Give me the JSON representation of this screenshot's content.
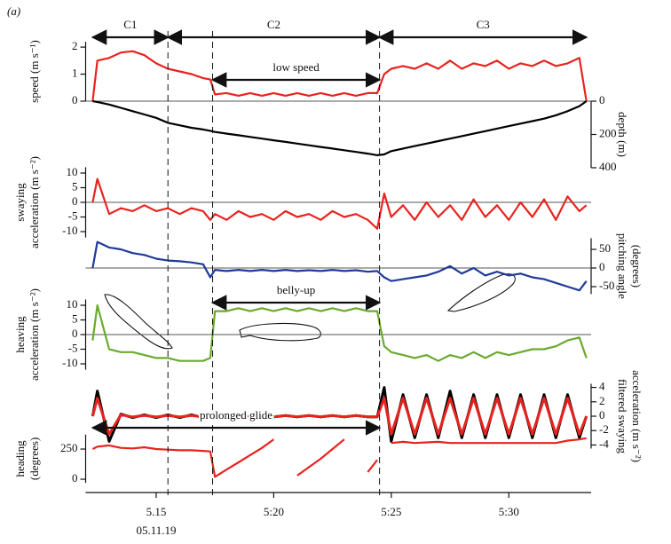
{
  "panel_label": "(a)",
  "x_axis": {
    "x": [
      12.3,
      12.5,
      13,
      13.5,
      14,
      14.5,
      15,
      15.5,
      16,
      16.5,
      17,
      17.3,
      17.5,
      18,
      18.5,
      19,
      19.5,
      20,
      20.5,
      21,
      21.5,
      22,
      22.5,
      23,
      23.5,
      24,
      24.4,
      24.7,
      25,
      25.5,
      26,
      26.5,
      27,
      27.5,
      28,
      28.5,
      29,
      29.5,
      30,
      30.5,
      31,
      31.5,
      32,
      32.5,
      33,
      33.3
    ],
    "xlim": [
      12,
      33.5
    ],
    "xticks": [
      {
        "value": 15,
        "label": "5.15"
      },
      {
        "value": 20,
        "label": "5:20"
      },
      {
        "value": 25,
        "label": "5:25"
      },
      {
        "value": 30,
        "label": "5:30"
      }
    ],
    "xsublabel": "05.11.19"
  },
  "dividers": [
    15.5,
    17.4,
    24.5
  ],
  "annotations": [
    {
      "text": "C1",
      "x": [
        12.3,
        15.5
      ]
    },
    {
      "text": "C2",
      "x": [
        15.5,
        24.5
      ]
    },
    {
      "text": "C3",
      "x": [
        24.5,
        33.3
      ]
    },
    {
      "text": "low speed",
      "x": [
        17.4,
        24.5
      ]
    },
    {
      "text": "belly-up",
      "x": [
        17.4,
        24.5
      ]
    },
    {
      "text": "prolonged glide",
      "x": [
        12.3,
        24.5
      ]
    }
  ],
  "chart_data": [
    {
      "type": "line",
      "side": "left",
      "ylabel": [
        "speed (m s⁻¹)"
      ],
      "ylim": [
        0,
        2.2
      ],
      "yticks": [
        0,
        1,
        2
      ],
      "ref_line": 0,
      "series": [
        {
          "color": "#e8231f",
          "values": [
            0,
            1.5,
            1.6,
            1.8,
            1.85,
            1.7,
            1.4,
            1.2,
            1.1,
            1.0,
            0.85,
            0.8,
            0.25,
            0.3,
            0.2,
            0.3,
            0.2,
            0.3,
            0.2,
            0.3,
            0.2,
            0.3,
            0.2,
            0.3,
            0.2,
            0.3,
            0.3,
            1.0,
            1.2,
            1.3,
            1.2,
            1.4,
            1.2,
            1.5,
            1.2,
            1.4,
            1.3,
            1.5,
            1.2,
            1.4,
            1.3,
            1.5,
            1.3,
            1.4,
            1.6,
            0
          ]
        }
      ]
    },
    {
      "type": "line",
      "side": "right",
      "inverted": true,
      "ylabel": [
        "depth (m)"
      ],
      "ylim": [
        0,
        400
      ],
      "yticks": [
        0,
        200,
        400
      ],
      "series": [
        {
          "color": "#000000",
          "values": [
            0,
            5,
            20,
            40,
            60,
            80,
            100,
            130,
            145,
            160,
            170,
            178,
            185,
            195,
            205,
            215,
            225,
            235,
            245,
            255,
            265,
            275,
            285,
            295,
            305,
            315,
            325,
            320,
            300,
            285,
            270,
            255,
            240,
            225,
            210,
            195,
            180,
            165,
            150,
            135,
            120,
            105,
            85,
            60,
            30,
            0
          ]
        }
      ]
    },
    {
      "type": "line",
      "side": "left",
      "ylabel": [
        "swaying",
        "acceleration (m s⁻²)"
      ],
      "ylim": [
        -12,
        12
      ],
      "yticks": [
        10,
        5,
        0,
        -5,
        -10
      ],
      "ref_line": 0,
      "series": [
        {
          "color": "#e8231f",
          "values": [
            0,
            8,
            -4,
            -2,
            -3,
            -1,
            -3,
            -2,
            -4,
            -2,
            -3,
            -6,
            -4,
            -6,
            -3,
            -5,
            -4,
            -6,
            -3,
            -5,
            -4,
            -6,
            -3,
            -5,
            -4,
            -6,
            -9,
            3,
            -5,
            -1,
            -6,
            0,
            -5,
            -1,
            -6,
            1,
            -5,
            -1,
            -6,
            0,
            -5,
            1,
            -6,
            2,
            -3,
            -1
          ]
        }
      ]
    },
    {
      "type": "line",
      "side": "right",
      "ylabel": [
        "pitching angle",
        "(degrees)"
      ],
      "ylim": [
        -70,
        80
      ],
      "yticks": [
        50,
        0,
        -50
      ],
      "ref_line": 0,
      "series": [
        {
          "color": "#1f3a9a",
          "values": [
            0,
            70,
            55,
            50,
            40,
            35,
            25,
            20,
            18,
            15,
            10,
            -25,
            -5,
            -8,
            -5,
            -8,
            -5,
            -8,
            -5,
            -8,
            -6,
            -8,
            -5,
            -8,
            -6,
            -10,
            -8,
            -25,
            -35,
            -30,
            -25,
            -20,
            -10,
            5,
            -15,
            0,
            -20,
            -10,
            -20,
            -15,
            -25,
            -30,
            -40,
            -50,
            -60,
            -35
          ]
        }
      ]
    },
    {
      "type": "line",
      "side": "left",
      "ylabel": [
        "heaving",
        "acceleration (m s⁻²)"
      ],
      "ylim": [
        -12,
        12
      ],
      "yticks": [
        10,
        5,
        0,
        -5,
        -10
      ],
      "ref_line": 0,
      "series": [
        {
          "color": "#6aaa2e",
          "values": [
            -2,
            10,
            -5,
            -6,
            -6,
            -7,
            -8,
            -8,
            -9,
            -9,
            -9,
            -8,
            8,
            8,
            9,
            8,
            9,
            8,
            9,
            8,
            9,
            8,
            9,
            8,
            9,
            8,
            8,
            -4,
            -6,
            -7,
            -8,
            -7,
            -9,
            -7,
            -8,
            -6,
            -8,
            -6,
            -7,
            -6,
            -5,
            -5,
            -4,
            -2,
            -1,
            -8
          ]
        }
      ]
    },
    {
      "type": "line",
      "side": "right",
      "ylabel": [
        "filtered swaying",
        "acceleration (m s⁻²)"
      ],
      "ylim": [
        -4.5,
        4.5
      ],
      "yticks": [
        4,
        2,
        0,
        -2,
        -4
      ],
      "series": [
        {
          "color": "#000000",
          "values": [
            0,
            3.5,
            -3.5,
            0.3,
            -0.2,
            0.2,
            -0.2,
            0.2,
            -0.2,
            0.2,
            -0.2,
            0.2,
            0.1,
            -0.1,
            0.1,
            -0.1,
            0.1,
            -0.1,
            0.1,
            -0.1,
            0.1,
            -0.1,
            0.1,
            -0.1,
            0.1,
            -0.1,
            -0.1,
            4,
            -3.5,
            3,
            -3,
            3,
            -3,
            3.5,
            -3,
            3,
            -3,
            3,
            -3,
            3,
            -3,
            3,
            -3,
            3,
            -3,
            0
          ]
        },
        {
          "color": "#e8231f",
          "values": [
            0,
            2.5,
            -2.5,
            0.2,
            -0.1,
            0.1,
            -0.1,
            0.1,
            -0.1,
            0.1,
            -0.1,
            0.1,
            0.1,
            -0.1,
            0.1,
            -0.1,
            0.1,
            -0.1,
            0.1,
            -0.1,
            0.1,
            -0.1,
            0.1,
            -0.1,
            0.1,
            -0.1,
            -0.1,
            2.5,
            -2.5,
            2.5,
            -2.5,
            2.5,
            -2.5,
            2.5,
            -2.5,
            2.5,
            -2.5,
            2.5,
            -2.5,
            2.5,
            -2.5,
            2.5,
            -2.5,
            2.5,
            -2.5,
            0
          ]
        }
      ]
    },
    {
      "type": "line",
      "side": "left",
      "ylabel": [
        "heading",
        "(degrees)"
      ],
      "ylim": [
        -30,
        370
      ],
      "yticks": [
        250,
        0
      ],
      "series": [
        {
          "color": "#e8231f",
          "values": [
            250,
            270,
            280,
            260,
            255,
            265,
            250,
            245,
            240,
            240,
            235,
            230,
            20,
            80,
            140,
            200,
            260,
            330,
            null,
            30,
            100,
            170,
            250,
            330,
            null,
            60,
            160,
            null,
            300,
            310,
            300,
            305,
            310,
            300,
            300,
            300,
            300,
            300,
            300,
            300,
            300,
            300,
            300,
            320,
            330,
            340
          ]
        }
      ]
    }
  ]
}
